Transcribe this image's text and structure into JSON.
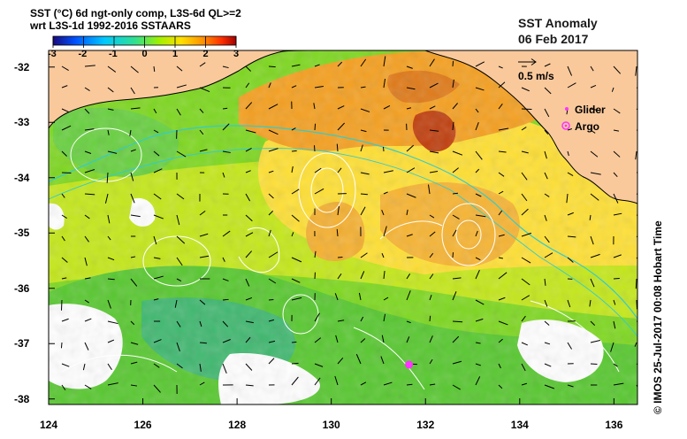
{
  "header": {
    "line1": "SST (°C) 6d ngt-only comp, L3S-6d QL>=2",
    "line2": "wrt L3S-1d 1992-2016 SSTAARS"
  },
  "anomaly": {
    "title": "SST Anomaly",
    "date": "06 Feb 2017"
  },
  "scale_vector": {
    "label": "0.5 m/s",
    "icon": "arrow-right-icon"
  },
  "legend": {
    "glider": {
      "label": "Glider",
      "color": "#ff33ff"
    },
    "argo": {
      "label": "Argo",
      "color": "#ff33ff"
    }
  },
  "colorbar": {
    "ticks": [
      "-3",
      "-2",
      "-1",
      "0",
      "1",
      "2",
      "3"
    ],
    "min": -3,
    "max": 3,
    "colors": [
      "#1a0a7a",
      "#0050ff",
      "#00c8ff",
      "#30e090",
      "#a0f000",
      "#ffe000",
      "#ff9000",
      "#ff3000",
      "#a00000"
    ]
  },
  "axes": {
    "x_ticks": [
      "124",
      "126",
      "128",
      "130",
      "132",
      "134",
      "136"
    ],
    "y_ticks": [
      "-32",
      "-33",
      "-34",
      "-35",
      "-36",
      "-37",
      "-38"
    ],
    "xlim": [
      124,
      136.5
    ],
    "ylim": [
      -38.1,
      -31.7
    ]
  },
  "credit": "© IMOS 25-Jul-2017 00:08 Hobart Time",
  "colors": {
    "land": "#f9c99c",
    "coast": "#000000",
    "isobath": "#33cccc",
    "ssh_contour": "#ffffff"
  },
  "markers": {
    "argo_float": {
      "lon": 131.65,
      "lat": -37.38
    }
  }
}
